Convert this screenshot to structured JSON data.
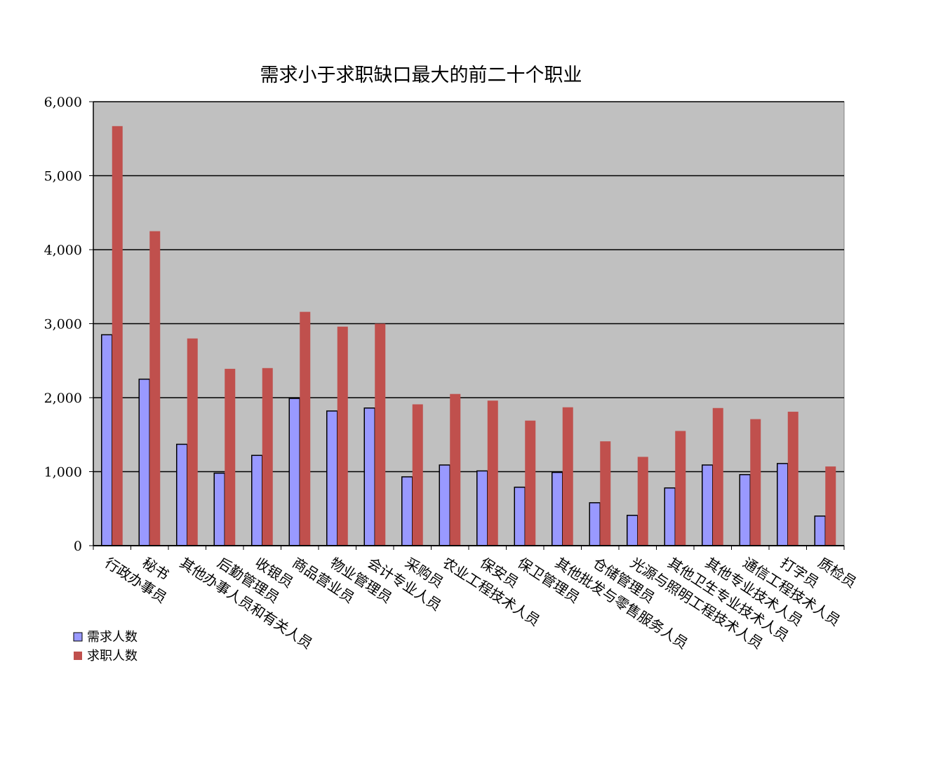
{
  "chart_data": {
    "type": "bar",
    "title": "需求小于求职缺口最大的前二十个职业",
    "xlabel": "",
    "ylabel": "",
    "ylim": [
      0,
      6000
    ],
    "yticks": [
      0,
      1000,
      2000,
      3000,
      4000,
      5000,
      6000
    ],
    "ytick_labels": [
      "0",
      "1,000",
      "2,000",
      "3,000",
      "4,000",
      "5,000",
      "6,000"
    ],
    "grid": true,
    "legend_position": "bottom-left",
    "categories": [
      "行政办事员",
      "秘书",
      "其他办事人员和有关人员",
      "后勤管理员",
      "收银员",
      "商品营业员",
      "物业管理员",
      "会计专业人员",
      "采购员",
      "农业工程技术人员",
      "保安员",
      "保卫管理员",
      "其他批发与零售服务人员",
      "仓储管理员",
      "光源与照明工程技术人员",
      "其他卫生专业技术人员",
      "其他专业技术人员",
      "通信工程技术人员",
      "打字员",
      "质检员"
    ],
    "series": [
      {
        "name": "需求人数",
        "color": "#9999ff",
        "values": [
          2850,
          2250,
          1370,
          980,
          1220,
          1990,
          1820,
          1860,
          930,
          1090,
          1010,
          790,
          990,
          580,
          410,
          780,
          1090,
          960,
          1110,
          400
        ]
      },
      {
        "name": "求职人数",
        "color": "#c0504d",
        "values": [
          5670,
          4250,
          2800,
          2390,
          2400,
          3160,
          2960,
          3000,
          1910,
          2050,
          1960,
          1690,
          1870,
          1410,
          1200,
          1550,
          1860,
          1710,
          1810,
          1070
        ]
      }
    ],
    "plot_background": "#c0c0c0"
  }
}
